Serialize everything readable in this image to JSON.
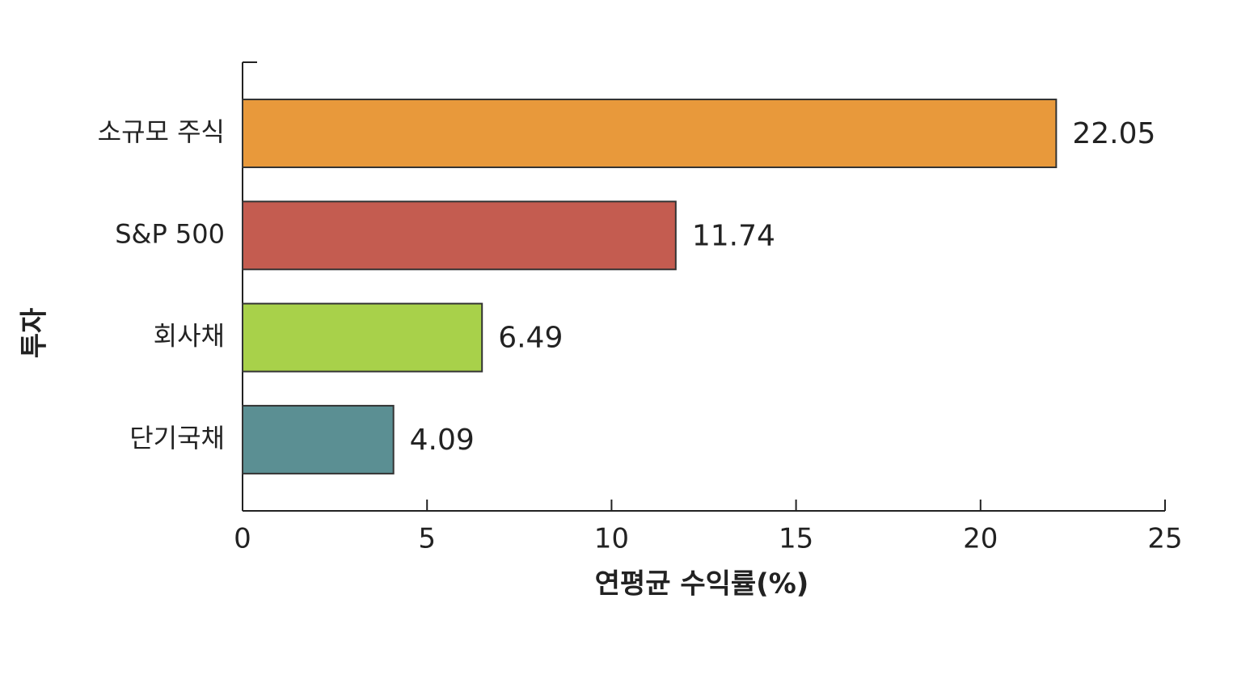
{
  "chart_data": {
    "type": "bar",
    "orientation": "horizontal",
    "ylabel": "투자",
    "xlabel": "연평균 수익률(%)",
    "categories": [
      "소규모 주식",
      "S&P 500",
      "회사채",
      "단기국채"
    ],
    "values": [
      22.05,
      11.74,
      6.49,
      4.09
    ],
    "colors": [
      "#e8993b",
      "#c45c50",
      "#a8d14a",
      "#5b8f93"
    ],
    "xlim": [
      0,
      25
    ],
    "xticks": [
      0,
      5,
      10,
      15,
      20,
      25
    ],
    "grid": false
  }
}
